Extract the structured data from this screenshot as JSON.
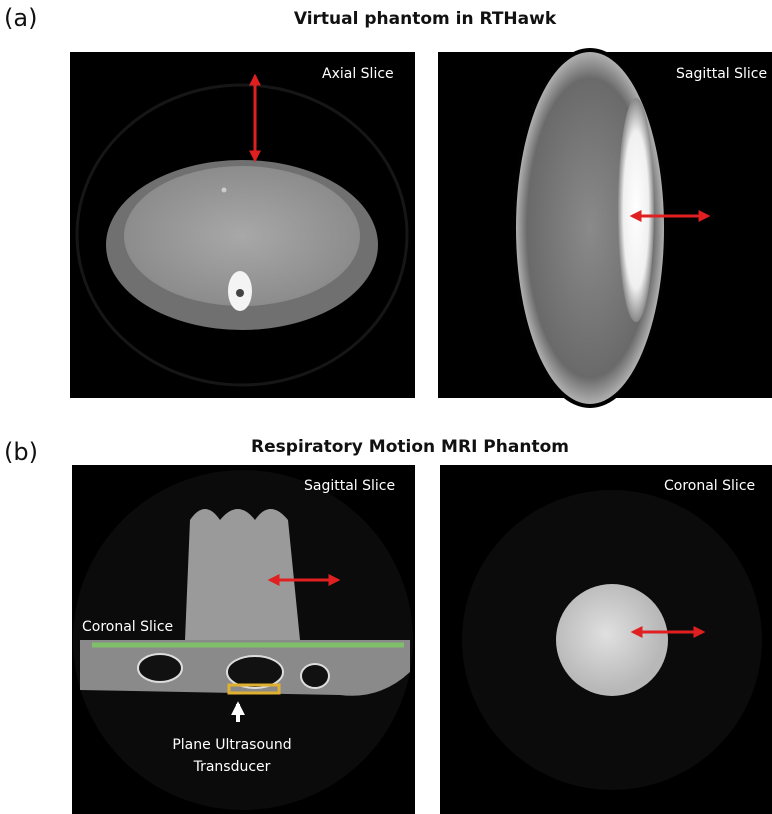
{
  "panels": [
    {
      "label": "(a)",
      "title": "Virtual phantom in RTHawk",
      "images": [
        {
          "caption": "Axial Slice"
        },
        {
          "caption": "Sagittal Slice"
        }
      ]
    },
    {
      "label": "(b)",
      "title": "Respiratory Motion MRI Phantom",
      "images": [
        {
          "caption": "Sagittal Slice",
          "annotations": [
            "Coronal Slice",
            "Plane Ultrasound",
            "Transducer"
          ]
        },
        {
          "caption": "Coronal Slice"
        }
      ]
    }
  ]
}
